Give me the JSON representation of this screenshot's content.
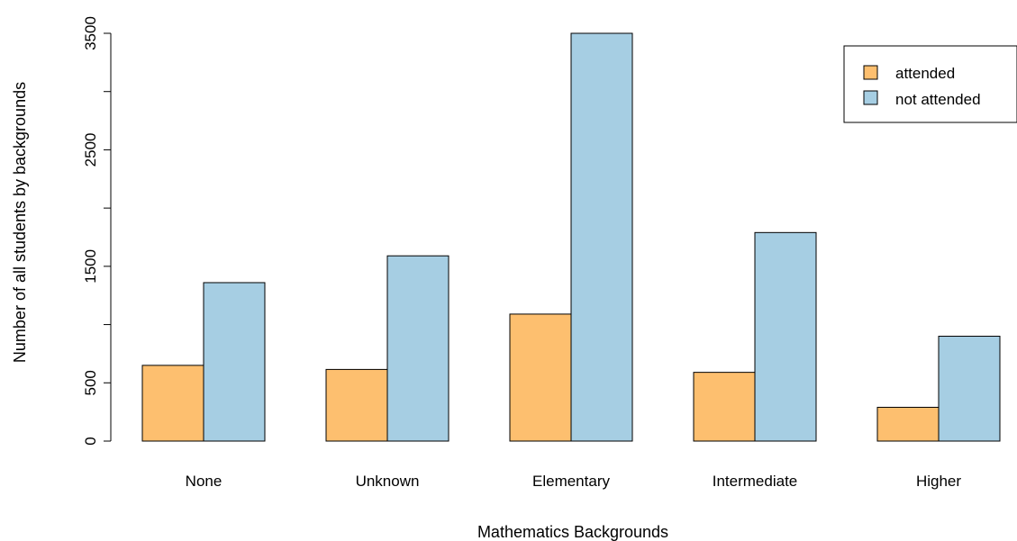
{
  "chart_data": {
    "type": "bar",
    "xlabel": "Mathematics Backgrounds",
    "ylabel": "Number of all students by backgrounds",
    "categories": [
      "None",
      "Unknown",
      "Elementary",
      "Intermediate",
      "Higher"
    ],
    "series": [
      {
        "name": "attended",
        "color": "#FDBF6F",
        "values": [
          650,
          615,
          1090,
          590,
          290
        ]
      },
      {
        "name": "not attended",
        "color": "#A6CEE3",
        "values": [
          1360,
          1590,
          3500,
          1790,
          900
        ]
      }
    ],
    "yticks": [
      0,
      500,
      1500,
      2500,
      3500
    ],
    "ylim": [
      0,
      3500
    ],
    "legend": {
      "placement": "top-right",
      "entries": [
        "attended",
        "not attended"
      ]
    },
    "grid": false
  }
}
